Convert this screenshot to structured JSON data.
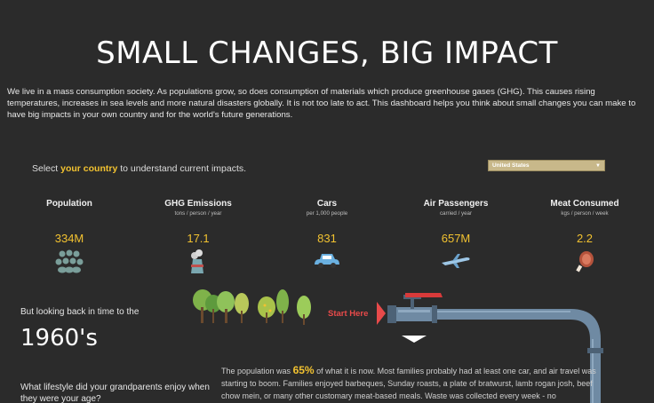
{
  "title": "SMALL CHANGES, BIG IMPACT",
  "intro": "We live in a mass consumption society. As populations grow, so does consumption of materials which produce greenhouse gases (GHG). This causes rising temperatures, increases in sea levels and more natural disasters globally. It is not too late to act. This dashboard helps you think about small changes you can make to have big impacts in your own country and for the world's future generations.",
  "select": {
    "prefix": "Select ",
    "highlight": "your country",
    "suffix": " to understand current impacts.",
    "country": "United States"
  },
  "metrics": [
    {
      "label": "Population",
      "sub": "",
      "value": "334M",
      "icon": "people-icon"
    },
    {
      "label": "GHG Emissions",
      "sub": "tons / person / year",
      "value": "17.1",
      "icon": "factory-icon"
    },
    {
      "label": "Cars",
      "sub": "per 1,000 people",
      "value": "831",
      "icon": "car-icon"
    },
    {
      "label": "Air Passengers",
      "sub": "carried / year",
      "value": "657M",
      "icon": "airplane-icon"
    },
    {
      "label": "Meat Consumed",
      "sub": "kgs / person / week",
      "value": "2.2",
      "icon": "meat-icon"
    }
  ],
  "timeline": {
    "looking_back": "But looking back in time to the",
    "decade": "1960's",
    "start_here": "Start Here"
  },
  "lifestyle_question": "What lifestyle did your grandparents enjoy when they were your age?",
  "story": {
    "prefix": "The population was ",
    "percent": "65%",
    "text": " of what it is now. Most families probably had at least one car, and air travel was starting to boom. Families enjoyed barbeques, Sunday roasts, a plate of bratwurst, lamb rogan josh, beef chow mein, or many other customary meat-based meals. Waste was collected every week - no"
  },
  "colors": {
    "background": "#2b2b2b",
    "accent": "#f2c230",
    "start_here": "#e84a4a",
    "pipe": "#6f8aa3"
  }
}
